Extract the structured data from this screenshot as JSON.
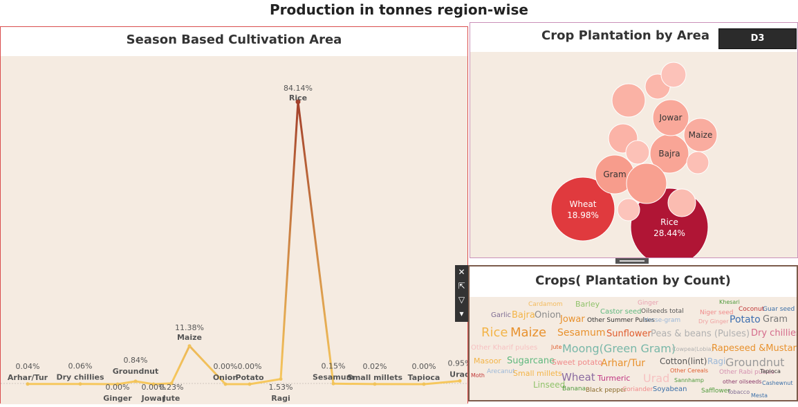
{
  "page": {
    "title": "Production in tonnes region-wise"
  },
  "chart_data": [
    {
      "type": "line",
      "title": "Season Based Cultivation Area",
      "categories": [
        "Arhar/Tur",
        "Dry chillies",
        "Ginger",
        "Groundnut",
        "Jowar",
        "Jute",
        "Maize",
        "Onion",
        "Potato",
        "Ragi",
        "Rice",
        "Sesamum",
        "Small millets",
        "Tapioca",
        "Urad"
      ],
      "series": [
        {
          "values": [
            0.04,
            0.06,
            0.0,
            0.84,
            0.0,
            0.23,
            11.38,
            0.0,
            0.0,
            1.53,
            84.14,
            0.15,
            0.02,
            0.0,
            0.95
          ]
        }
      ],
      "data_labels": [
        "0.04%",
        "0.06%",
        "0.00%",
        "0.84%",
        "0.00%",
        "0.23%",
        "11.38%",
        "0.00%",
        "0.00%",
        "1.53%",
        "84.14%",
        "0.15%",
        "0.02%",
        "0.00%",
        "0.95%"
      ],
      "label_position": [
        "above",
        "above",
        "below",
        "above",
        "below",
        "below",
        "above",
        "above",
        "above",
        "below",
        "above",
        "above",
        "above",
        "above",
        "above"
      ],
      "ylim": [
        0,
        84.14
      ],
      "colors": {
        "low": "#f6c75d",
        "high": "#a3402b",
        "marker": "#f1c35b",
        "background": "#f5ebe1"
      }
    },
    {
      "type": "bubble",
      "title": "Crop Plantation by Area",
      "filter_badge": "D3",
      "bubbles": [
        {
          "label": "Rice",
          "value_label": "28.44%",
          "color": "#b01535",
          "text_color": "#ffffff"
        },
        {
          "label": "Wheat",
          "value_label": "18.98%",
          "color": "#e03a3e",
          "text_color": "#ffffff"
        },
        {
          "label": "Gram",
          "value_label": "",
          "color": "#f79c8c",
          "text_color": "#333333"
        },
        {
          "label": "Bajra",
          "value_label": "",
          "color": "#f9a596",
          "text_color": "#333333"
        },
        {
          "label": "Jowar",
          "value_label": "",
          "color": "#f9a89a",
          "text_color": "#333333"
        },
        {
          "label": "Maize",
          "value_label": "",
          "color": "#f9ac9f",
          "text_color": "#333333"
        },
        {
          "label": "",
          "value_label": "",
          "color": "#f8a090",
          "text_color": "#333333"
        },
        {
          "label": "",
          "value_label": "",
          "color": "#fab2a5",
          "text_color": "#333333"
        },
        {
          "label": "",
          "value_label": "",
          "color": "#fbb6aa",
          "text_color": "#333333"
        },
        {
          "label": "",
          "value_label": "",
          "color": "#fbb3a7",
          "text_color": "#333333"
        },
        {
          "label": "",
          "value_label": "",
          "color": "#fbbcb1",
          "text_color": "#333333"
        },
        {
          "label": "",
          "value_label": "",
          "color": "#fcbfb5",
          "text_color": "#333333"
        },
        {
          "label": "",
          "value_label": "",
          "color": "#fcc1b7",
          "text_color": "#333333"
        },
        {
          "label": "",
          "value_label": "",
          "color": "#fcc2b9",
          "text_color": "#333333"
        },
        {
          "label": "",
          "value_label": "",
          "color": "#fcc4bb",
          "text_color": "#333333"
        }
      ]
    },
    {
      "type": "word_cloud",
      "title": "Crops( Plantation by Count)",
      "words": [
        {
          "text": "Cardamom",
          "color": "#f3bb5e"
        },
        {
          "text": "Barley",
          "color": "#8fc26a"
        },
        {
          "text": "Ginger",
          "color": "#e8a0b0"
        },
        {
          "text": "Khesari",
          "color": "#4e9a3b"
        },
        {
          "text": "Garlic",
          "color": "#7d6b92"
        },
        {
          "text": "Bajra",
          "color": "#f3b447"
        },
        {
          "text": "Onion",
          "color": "#8a8a8a"
        },
        {
          "text": "Castor seed",
          "color": "#5fb87e"
        },
        {
          "text": "Oilseeds total",
          "color": "#555555"
        },
        {
          "text": "Niger seed",
          "color": "#f08a8a"
        },
        {
          "text": "Coconut",
          "color": "#c03535"
        },
        {
          "text": "Guar seed",
          "color": "#3b6fa8"
        },
        {
          "text": "Jowar",
          "color": "#e8912d"
        },
        {
          "text": "Other Summer Pulses",
          "color": "#333333"
        },
        {
          "text": "Horse-gram",
          "color": "#9ab7d8"
        },
        {
          "text": "Dry Ginger",
          "color": "#f0a0a0"
        },
        {
          "text": "Potato",
          "color": "#3e6fb0"
        },
        {
          "text": "Gram",
          "color": "#777777"
        },
        {
          "text": "Rice",
          "color": "#f3b447"
        },
        {
          "text": "Maize",
          "color": "#e8912d"
        },
        {
          "text": "Sesamum",
          "color": "#e8912d"
        },
        {
          "text": "Sunflower",
          "color": "#e05c2d"
        },
        {
          "text": "Peas & beans (Pulses)",
          "color": "#b0b0b0"
        },
        {
          "text": "Dry chillies",
          "color": "#d46a8a"
        },
        {
          "text": "Other Kharif pulses",
          "color": "#f6c1c1"
        },
        {
          "text": "Jute",
          "color": "#e05c2d"
        },
        {
          "text": "Moong(Green Gram)",
          "color": "#78b7a8"
        },
        {
          "text": "Cowpea(Lobia)",
          "color": "#b0b0b0"
        },
        {
          "text": "Rapeseed &Mustard",
          "color": "#e8912d"
        },
        {
          "text": "Masoor",
          "color": "#f3b447"
        },
        {
          "text": "Sugarcane",
          "color": "#5fb87e"
        },
        {
          "text": "Sweet potato",
          "color": "#f08a8a"
        },
        {
          "text": "Arhar/Tur",
          "color": "#e8912d"
        },
        {
          "text": "Cotton(lint)",
          "color": "#555555"
        },
        {
          "text": "Ragi",
          "color": "#9ab7d8"
        },
        {
          "text": "Groundnut",
          "color": "#9a9a9a"
        },
        {
          "text": "Moth",
          "color": "#c03535"
        },
        {
          "text": "Arecanut",
          "color": "#9ab7d8"
        },
        {
          "text": "Small millets",
          "color": "#f3b447"
        },
        {
          "text": "Wheat",
          "color": "#8a6aa0"
        },
        {
          "text": "Turmeric",
          "color": "#c03582"
        },
        {
          "text": "Urad",
          "color": "#f6c1c1"
        },
        {
          "text": "Other Cereals",
          "color": "#e05c2d"
        },
        {
          "text": "Sannhamp",
          "color": "#4e9a3b"
        },
        {
          "text": "Other Rabi pulses",
          "color": "#d490b0"
        },
        {
          "text": "Tapioca",
          "color": "#333333"
        },
        {
          "text": "other oilseeds",
          "color": "#8a3a6a"
        },
        {
          "text": "Cashewnut",
          "color": "#3b6fa8"
        },
        {
          "text": "Linseed",
          "color": "#8fc26a"
        },
        {
          "text": "Banana",
          "color": "#4e9a3b"
        },
        {
          "text": "Black pepper",
          "color": "#8a6a2a"
        },
        {
          "text": "Coriander",
          "color": "#f08a8a"
        },
        {
          "text": "Soyabean",
          "color": "#3b6fa8"
        },
        {
          "text": "Safflower",
          "color": "#4e9a3b"
        },
        {
          "text": "Tobacco",
          "color": "#7d6b92"
        },
        {
          "text": "Mesta",
          "color": "#3b6fa8"
        }
      ]
    }
  ]
}
